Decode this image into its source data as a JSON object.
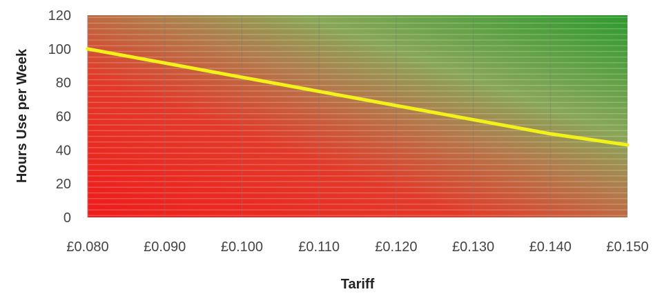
{
  "chart_data": {
    "type": "line",
    "title": "",
    "xlabel": "Tariff",
    "ylabel": "Hours Use per Week",
    "x_ticks": [
      "£0.080",
      "£0.090",
      "£0.100",
      "£0.110",
      "£0.120",
      "£0.130",
      "£0.140",
      "£0.150"
    ],
    "y_ticks": [
      "0",
      "20",
      "40",
      "60",
      "80",
      "100",
      "120"
    ],
    "xlim": [
      0.08,
      0.15
    ],
    "ylim": [
      0,
      120
    ],
    "grid": "vertical",
    "background": "gradient red (bottom-left) to green (top-right)",
    "series": [
      {
        "x": [
          0.08,
          0.09,
          0.1,
          0.11,
          0.12,
          0.13,
          0.14,
          0.15
        ],
        "y": [
          100,
          91.6,
          83.2,
          74.8,
          66.4,
          58.0,
          49.6,
          43
        ],
        "color": "#f2f21a"
      }
    ]
  },
  "colors": {
    "red": "#ee2222",
    "green": "#2e9a2e",
    "line": "#f2f21a"
  }
}
